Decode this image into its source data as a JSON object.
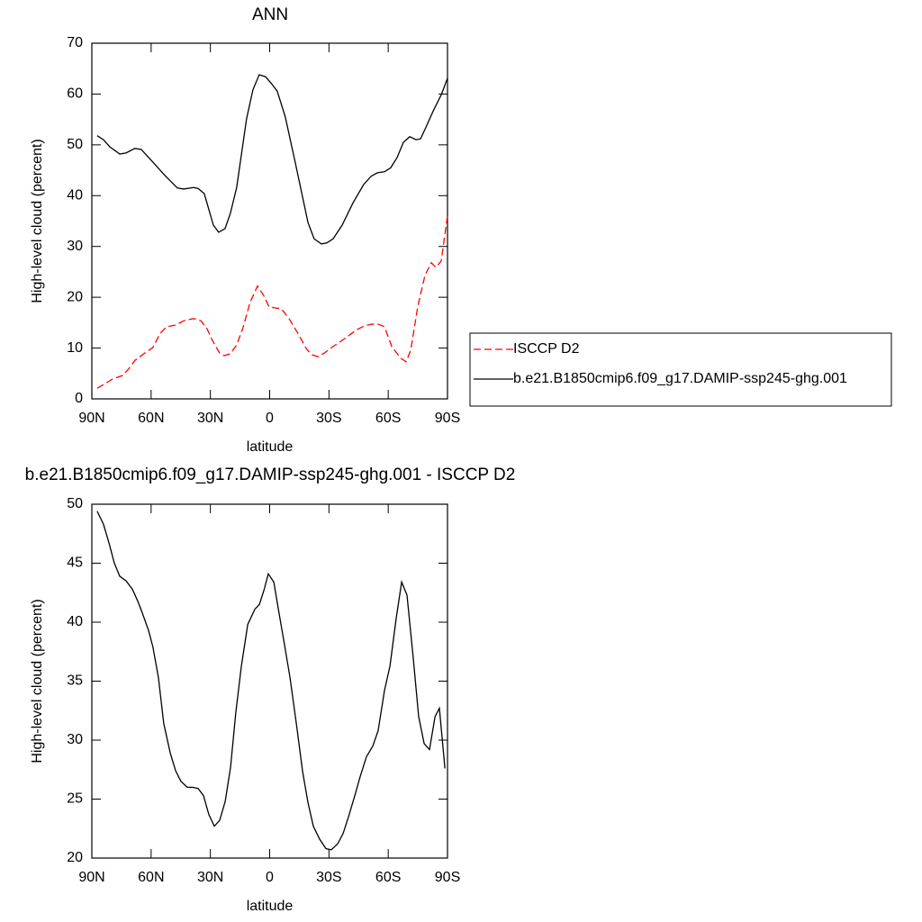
{
  "chart_data": [
    {
      "type": "line",
      "title": "ANN",
      "xlabel": "latitude",
      "ylabel": "High-level cloud (percent)",
      "xlim": [
        90,
        -90
      ],
      "xticks": [
        {
          "value": 90,
          "label": "90N"
        },
        {
          "value": 60,
          "label": "60N"
        },
        {
          "value": 30,
          "label": "30N"
        },
        0,
        {
          "value": -30,
          "label": "30S"
        },
        {
          "value": -60,
          "label": "60S"
        },
        {
          "value": -90,
          "label": "90S"
        }
      ],
      "ylim": [
        0,
        70
      ],
      "yticks": [
        0,
        10,
        20,
        30,
        40,
        50,
        60,
        70
      ],
      "legend": "right",
      "series": [
        {
          "name": "ISCCP D2",
          "color": "#ff0000",
          "line_style": "dashed",
          "x": [
            87.3,
            84.1,
            79.5,
            74.5,
            71.8,
            68.1,
            63.6,
            59.1,
            55.4,
            52.2,
            47.7,
            43.2,
            38.5,
            34.9,
            31.7,
            29.0,
            25.3,
            23.0,
            19.9,
            16.7,
            13.5,
            9.9,
            6.2,
            3.1,
            0.3,
            -2.8,
            -6.0,
            -9.8,
            -14.3,
            -18.5,
            -21.2,
            -24.4,
            -27.6,
            -32.1,
            -38.1,
            -44.0,
            -48.1,
            -51.7,
            -54.9,
            -58.1,
            -61.8,
            -66.3,
            -69.1,
            -71.4,
            -75.0,
            -78.6,
            -81.8,
            -84.1,
            -86.8,
            -90.0
          ],
          "values": [
            2.1,
            2.8,
            3.9,
            4.6,
            5.7,
            7.6,
            8.9,
            10.1,
            12.9,
            14.2,
            14.5,
            15.4,
            15.8,
            15.4,
            13.8,
            11.5,
            9.0,
            8.5,
            8.9,
            10.6,
            14.0,
            19.0,
            22.2,
            20.4,
            18.1,
            17.9,
            17.7,
            15.8,
            12.9,
            9.9,
            8.7,
            8.3,
            9.0,
            10.3,
            11.9,
            13.6,
            14.4,
            14.7,
            14.7,
            14.2,
            10.3,
            8.0,
            7.3,
            9.6,
            18.3,
            24.3,
            26.8,
            25.9,
            27.1,
            36.0
          ]
        },
        {
          "name": "b.e21.B1850cmip6.f09_g17.DAMIP-ssp245-ghg.001",
          "color": "#000000",
          "line_style": "solid",
          "x": [
            87.3,
            84.1,
            80.9,
            75.9,
            72.7,
            68.2,
            65.0,
            59.1,
            53.1,
            46.7,
            43.5,
            38.5,
            36.2,
            33.1,
            28.5,
            25.8,
            22.6,
            19.9,
            16.7,
            11.7,
            8.5,
            5.3,
            2.1,
            -0.6,
            -3.8,
            -7.9,
            -12.9,
            -19.4,
            -22.5,
            -26.2,
            -28.9,
            -32.1,
            -36.7,
            -42.2,
            -47.6,
            -51.3,
            -54.5,
            -58.1,
            -61.3,
            -64.5,
            -67.7,
            -70.9,
            -74.1,
            -76.4,
            -79.6,
            -82.8,
            -86.9,
            -90.0
          ],
          "values": [
            51.8,
            51.0,
            49.6,
            48.2,
            48.4,
            49.3,
            49.1,
            46.6,
            44.0,
            41.5,
            41.3,
            41.6,
            41.4,
            40.4,
            34.2,
            32.8,
            33.5,
            36.5,
            41.6,
            55.1,
            60.8,
            63.8,
            63.4,
            62.2,
            60.6,
            55.5,
            46.6,
            34.7,
            31.5,
            30.5,
            30.7,
            31.5,
            34.2,
            38.6,
            42.2,
            43.8,
            44.5,
            44.7,
            45.5,
            47.5,
            50.5,
            51.6,
            51.0,
            51.2,
            53.9,
            56.7,
            59.9,
            63.1
          ]
        }
      ]
    },
    {
      "type": "line",
      "title": "b.e21.B1850cmip6.f09_g17.DAMIP-ssp245-ghg.001 - ISCCP D2",
      "xlabel": "latitude",
      "ylabel": "High-level cloud (percent)",
      "xlim": [
        90,
        -90
      ],
      "xticks": [
        {
          "value": 90,
          "label": "90N"
        },
        {
          "value": 60,
          "label": "60N"
        },
        {
          "value": 30,
          "label": "30N"
        },
        0,
        {
          "value": -30,
          "label": "30S"
        },
        {
          "value": -60,
          "label": "60S"
        },
        {
          "value": -90,
          "label": "90S"
        }
      ],
      "ylim": [
        20,
        50
      ],
      "yticks": [
        20,
        25,
        30,
        35,
        40,
        45,
        50
      ],
      "series": [
        {
          "color": "#000000",
          "line_style": "solid",
          "x": [
            87.3,
            84.1,
            81.3,
            78.6,
            75.9,
            72.7,
            69.5,
            66.8,
            64.5,
            61.3,
            59.1,
            56.3,
            53.6,
            50.3,
            47.6,
            44.9,
            41.7,
            39.0,
            36.2,
            33.5,
            30.8,
            28.0,
            25.3,
            22.5,
            19.8,
            17.1,
            14.3,
            11.1,
            7.5,
            5.2,
            2.9,
            0.7,
            -2.1,
            -4.4,
            -7.6,
            -10.3,
            -13.5,
            -16.7,
            -19.4,
            -22.1,
            -25.3,
            -28.5,
            -31.2,
            -34.4,
            -37.2,
            -39.9,
            -43.1,
            -45.8,
            -49.0,
            -52.2,
            -54.9,
            -58.1,
            -60.9,
            -64.1,
            -66.8,
            -69.5,
            -72.7,
            -75.4,
            -78.2,
            -80.9,
            -83.7,
            -85.9,
            -88.7
          ],
          "values": [
            49.4,
            48.3,
            46.7,
            45.0,
            43.9,
            43.5,
            42.8,
            41.8,
            40.8,
            39.3,
            37.9,
            35.3,
            31.4,
            28.9,
            27.4,
            26.5,
            26.0,
            26.0,
            25.9,
            25.3,
            23.7,
            22.7,
            23.2,
            24.8,
            27.7,
            32.4,
            36.3,
            39.8,
            41.1,
            41.5,
            42.7,
            44.1,
            43.4,
            41.1,
            38.0,
            35.3,
            31.4,
            27.3,
            24.7,
            22.7,
            21.6,
            20.8,
            20.7,
            21.2,
            22.1,
            23.5,
            25.3,
            26.9,
            28.6,
            29.5,
            30.8,
            34.2,
            36.3,
            40.4,
            43.4,
            42.3,
            36.9,
            32.0,
            29.7,
            29.2,
            32.0,
            32.7,
            27.6
          ]
        }
      ]
    }
  ]
}
